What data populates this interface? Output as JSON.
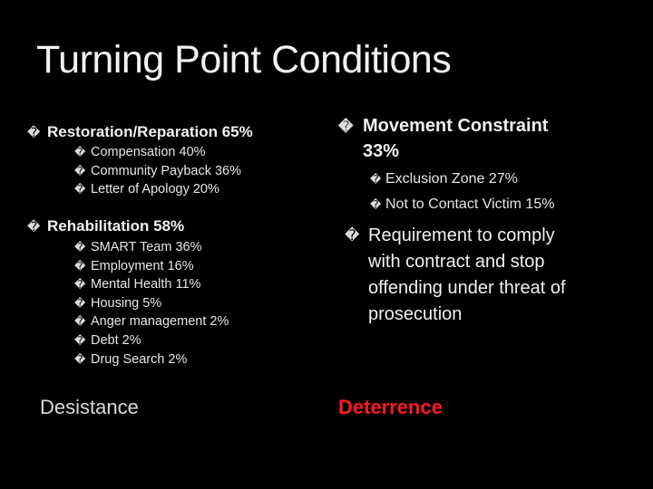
{
  "slide": {
    "title": "Turning Point Conditions",
    "bullet_glyph": "�",
    "left": {
      "groups": [
        {
          "heading": "Restoration/Reparation 65%",
          "items": [
            "Compensation 40%",
            "Community Payback 36%",
            "Letter of Apology 20%"
          ]
        },
        {
          "heading": "Rehabilitation 58%",
          "items": [
            "SMART Team 36%",
            "Employment 16%",
            "Mental Health 11%",
            "Housing 5%",
            "Anger management 2%",
            "Debt 2%",
            "Drug Search 2%"
          ]
        }
      ],
      "footer": "Desistance"
    },
    "right": {
      "heading_line1": "Movement Constraint",
      "heading_line2": "33%",
      "items": [
        "Exclusion Zone 27%",
        "Not to Contact Victim 15%"
      ],
      "requirement_lines": [
        "Requirement to comply",
        "with contract and stop",
        "offending under threat of",
        "prosecution"
      ],
      "footer": "Deterrence"
    },
    "colors": {
      "background": "#000000",
      "text": "#ffffff",
      "deterrence": "#ff1a1a"
    }
  }
}
